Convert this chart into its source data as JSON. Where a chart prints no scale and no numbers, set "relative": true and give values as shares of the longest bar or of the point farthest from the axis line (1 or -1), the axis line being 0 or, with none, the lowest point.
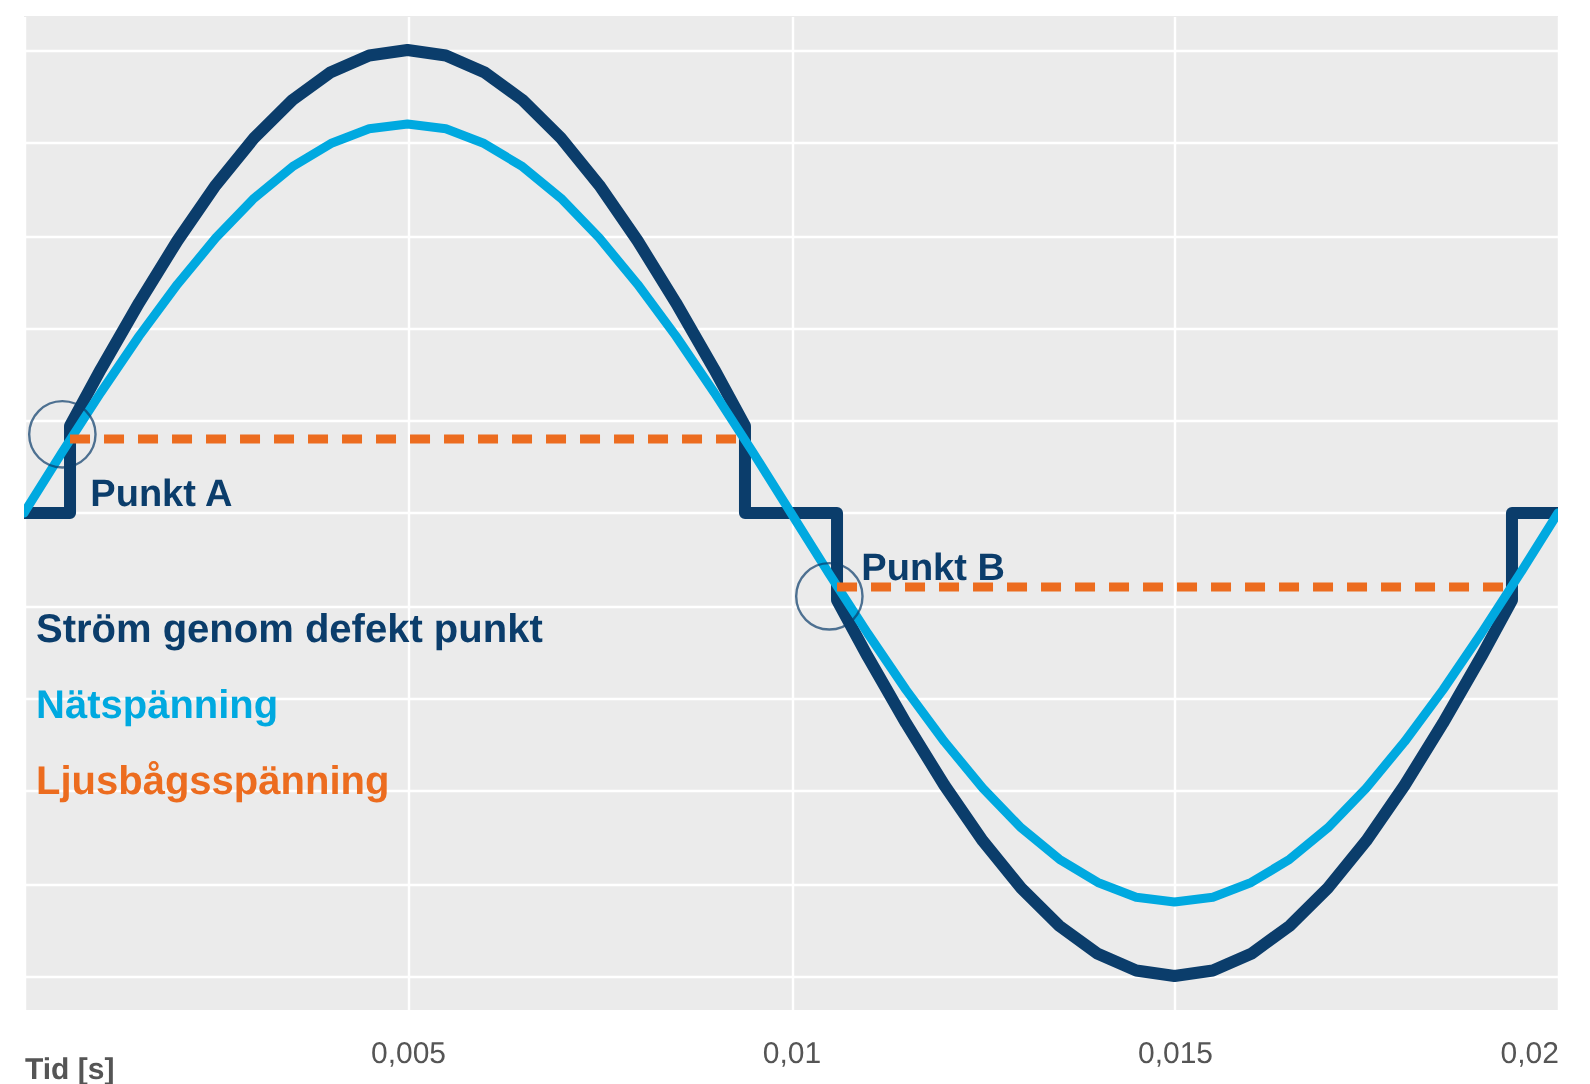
{
  "chart_data": {
    "type": "line",
    "relative": true,
    "xlabel": "Tid [s]",
    "xlim": [
      0,
      0.02
    ],
    "xticks": [
      {
        "value": 0,
        "label": null
      },
      {
        "value": 0.005,
        "label": "0,005"
      },
      {
        "value": 0.01,
        "label": "0,01"
      },
      {
        "value": 0.015,
        "label": "0,015"
      },
      {
        "value": 0.02,
        "label": "0,02"
      }
    ],
    "grid": true,
    "legend": "bottom left",
    "line_style": "solid",
    "marker": "none",
    "annotations": [
      {
        "text": "Punkt A",
        "x": 0.0005,
        "y": 0.585
      },
      {
        "text": "Punkt B",
        "x": 0.0105,
        "y": 0.41
      }
    ],
    "series": [
      {
        "name": "Ström genom defekt punkt",
        "color": "#0b3d6b",
        "x": [
          0,
          0.0006,
          0.0006,
          0.001,
          0.0015,
          0.002,
          0.0025,
          0.003,
          0.0035,
          0.004,
          0.0045,
          0.005,
          0.0055,
          0.006,
          0.0065,
          0.007,
          0.0075,
          0.008,
          0.0085,
          0.009,
          0.0094,
          0.0094,
          0.0106,
          0.0106,
          0.011,
          0.0115,
          0.012,
          0.0125,
          0.013,
          0.0135,
          0.014,
          0.0145,
          0.015,
          0.0155,
          0.016,
          0.0165,
          0.017,
          0.0175,
          0.018,
          0.0185,
          0.019,
          0.0194,
          0.0194,
          0.02
        ],
        "values": [
          0.5,
          0.5,
          0.594,
          0.655,
          0.727,
          0.794,
          0.854,
          0.905,
          0.946,
          0.976,
          0.994,
          1,
          0.994,
          0.976,
          0.946,
          0.905,
          0.854,
          0.794,
          0.727,
          0.655,
          0.594,
          0.5,
          0.5,
          0.406,
          0.345,
          0.273,
          0.206,
          0.146,
          0.095,
          0.054,
          0.024,
          0.006,
          0,
          0.006,
          0.024,
          0.054,
          0.095,
          0.146,
          0.206,
          0.273,
          0.345,
          0.406,
          0.5,
          0.5
        ]
      },
      {
        "name": "Nätspänning",
        "color": "#00a9e0",
        "x": [
          0,
          0.0005,
          0.001,
          0.0015,
          0.002,
          0.0025,
          0.003,
          0.0035,
          0.004,
          0.0045,
          0.005,
          0.0055,
          0.006,
          0.0065,
          0.007,
          0.0075,
          0.008,
          0.0085,
          0.009,
          0.0095,
          0.01,
          0.0105,
          0.011,
          0.0115,
          0.012,
          0.0125,
          0.013,
          0.0135,
          0.014,
          0.0145,
          0.015,
          0.0155,
          0.016,
          0.0165,
          0.017,
          0.0175,
          0.018,
          0.0185,
          0.019,
          0.0195,
          0.02
        ],
        "values": [
          0.5,
          0.566,
          0.63,
          0.691,
          0.747,
          0.797,
          0.84,
          0.874,
          0.899,
          0.915,
          0.92,
          0.915,
          0.899,
          0.874,
          0.84,
          0.797,
          0.747,
          0.691,
          0.63,
          0.566,
          0.5,
          0.434,
          0.37,
          0.309,
          0.253,
          0.203,
          0.16,
          0.126,
          0.101,
          0.085,
          0.08,
          0.085,
          0.101,
          0.126,
          0.16,
          0.203,
          0.253,
          0.309,
          0.37,
          0.434,
          0.5
        ]
      },
      {
        "name": "Ljusbågsspänning",
        "color": "#ec6c1f",
        "line_style": "dashed",
        "x": [
          0.0006,
          0.0094,
          0.01,
          0.0106,
          0.0194
        ],
        "values": [
          0.58,
          0.58,
          null,
          0.42,
          0.42
        ]
      }
    ]
  }
}
